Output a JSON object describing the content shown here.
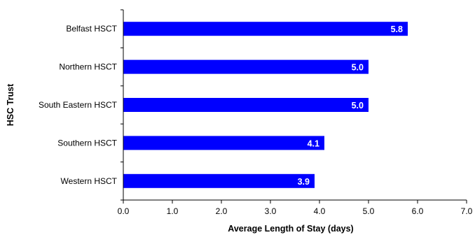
{
  "chart_data": {
    "type": "bar",
    "orientation": "horizontal",
    "categories": [
      "Belfast HSCT",
      "Northern HSCT",
      "South Eastern HSCT",
      "Southern HSCT",
      "Western HSCT"
    ],
    "values": [
      5.8,
      5.0,
      5.0,
      4.1,
      3.9
    ],
    "data_labels": [
      "5.8",
      "5.0",
      "5.0",
      "4.1",
      "3.9"
    ],
    "xlabel": "Average Length of Stay (days)",
    "ylabel": "HSC Trust",
    "xlim": [
      0,
      7
    ],
    "x_ticks": [
      "0.0",
      "1.0",
      "2.0",
      "3.0",
      "4.0",
      "5.0",
      "6.0",
      "7.0"
    ],
    "grid": false,
    "bar_color": "#0000ff",
    "data_label_color": "#ffffff"
  }
}
